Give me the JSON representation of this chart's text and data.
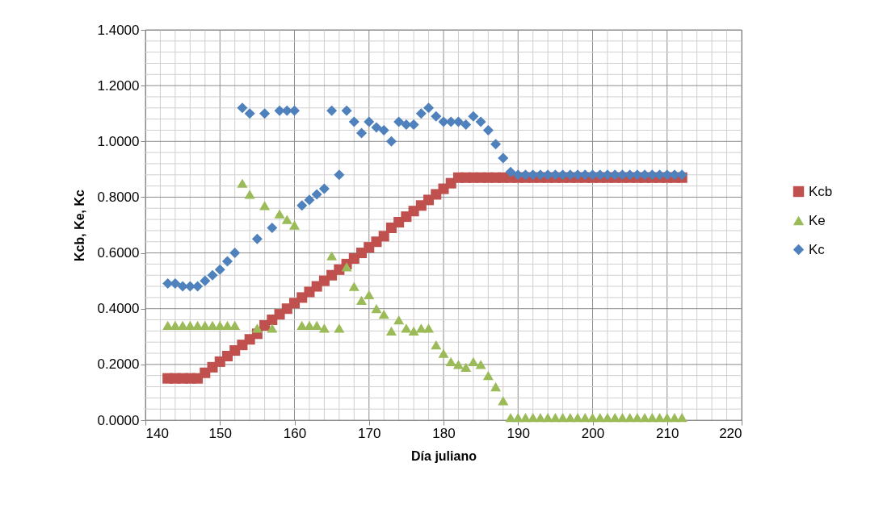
{
  "chart_data": {
    "type": "scatter",
    "xlabel": "Día juliano",
    "ylabel": "Kcb, Ke, Kc",
    "x": [
      143,
      144,
      145,
      146,
      147,
      148,
      149,
      150,
      151,
      152,
      153,
      154,
      155,
      156,
      157,
      158,
      159,
      160,
      161,
      162,
      163,
      164,
      165,
      166,
      167,
      168,
      169,
      170,
      171,
      172,
      173,
      174,
      175,
      176,
      177,
      178,
      179,
      180,
      181,
      182,
      183,
      184,
      185,
      186,
      187,
      188,
      189,
      190,
      191,
      192,
      193,
      194,
      195,
      196,
      197,
      198,
      199,
      200,
      201,
      202,
      203,
      204,
      205,
      206,
      207,
      208,
      209,
      210,
      211,
      212
    ],
    "series": [
      {
        "name": "Kcb",
        "marker": "square",
        "color": "#c0504d",
        "values": [
          0.15,
          0.15,
          0.15,
          0.15,
          0.15,
          0.17,
          0.19,
          0.21,
          0.23,
          0.25,
          0.27,
          0.29,
          0.31,
          0.34,
          0.36,
          0.38,
          0.4,
          0.42,
          0.44,
          0.46,
          0.48,
          0.5,
          0.52,
          0.54,
          0.56,
          0.58,
          0.6,
          0.62,
          0.64,
          0.66,
          0.69,
          0.71,
          0.73,
          0.75,
          0.77,
          0.79,
          0.81,
          0.83,
          0.85,
          0.87,
          0.87,
          0.87,
          0.87,
          0.87,
          0.87,
          0.87,
          0.87,
          0.87,
          0.87,
          0.87,
          0.87,
          0.87,
          0.87,
          0.87,
          0.87,
          0.87,
          0.87,
          0.87,
          0.87,
          0.87,
          0.87,
          0.87,
          0.87,
          0.87,
          0.87,
          0.87,
          0.87,
          0.87,
          0.87,
          0.87
        ]
      },
      {
        "name": "Ke",
        "marker": "triangle",
        "color": "#9bbb59",
        "values": [
          0.34,
          0.34,
          0.34,
          0.34,
          0.34,
          0.34,
          0.34,
          0.34,
          0.34,
          0.34,
          0.85,
          0.81,
          0.33,
          0.77,
          0.33,
          0.74,
          0.72,
          0.7,
          0.34,
          0.34,
          0.34,
          0.33,
          0.59,
          0.33,
          0.55,
          0.48,
          0.43,
          0.45,
          0.4,
          0.38,
          0.32,
          0.36,
          0.33,
          0.32,
          0.33,
          0.33,
          0.27,
          0.24,
          0.21,
          0.2,
          0.19,
          0.21,
          0.2,
          0.16,
          0.12,
          0.07,
          0.01,
          0.01,
          0.01,
          0.01,
          0.01,
          0.01,
          0.01,
          0.01,
          0.01,
          0.01,
          0.01,
          0.01,
          0.01,
          0.01,
          0.01,
          0.01,
          0.01,
          0.01,
          0.01,
          0.01,
          0.01,
          0.01,
          0.01,
          0.01
        ]
      },
      {
        "name": "Kc",
        "marker": "diamond",
        "color": "#4f81bd",
        "values": [
          0.49,
          0.49,
          0.48,
          0.48,
          0.48,
          0.5,
          0.52,
          0.54,
          0.57,
          0.6,
          1.12,
          1.1,
          0.65,
          1.1,
          0.69,
          1.11,
          1.11,
          1.11,
          0.77,
          0.79,
          0.81,
          0.83,
          1.11,
          0.88,
          1.11,
          1.07,
          1.03,
          1.07,
          1.05,
          1.04,
          1.0,
          1.07,
          1.06,
          1.06,
          1.1,
          1.12,
          1.09,
          1.07,
          1.07,
          1.07,
          1.06,
          1.09,
          1.07,
          1.04,
          0.99,
          0.94,
          0.89,
          0.88,
          0.88,
          0.88,
          0.88,
          0.88,
          0.88,
          0.88,
          0.88,
          0.88,
          0.88,
          0.88,
          0.88,
          0.88,
          0.88,
          0.88,
          0.88,
          0.88,
          0.88,
          0.88,
          0.88,
          0.88,
          0.88,
          0.88
        ]
      }
    ],
    "xlim": [
      140,
      220
    ],
    "xticks": [
      140,
      {
        "value": 142,
        "label": null
      },
      {
        "value": 144,
        "label": null
      },
      {
        "value": 146,
        "label": null
      },
      {
        "value": 148,
        "label": null
      },
      150,
      {
        "value": 152,
        "label": null
      },
      {
        "value": 154,
        "label": null
      },
      {
        "value": 156,
        "label": null
      },
      {
        "value": 158,
        "label": null
      },
      160,
      {
        "value": 162,
        "label": null
      },
      {
        "value": 164,
        "label": null
      },
      {
        "value": 166,
        "label": null
      },
      {
        "value": 168,
        "label": null
      },
      170,
      {
        "value": 172,
        "label": null
      },
      {
        "value": 174,
        "label": null
      },
      {
        "value": 176,
        "label": null
      },
      {
        "value": 178,
        "label": null
      },
      180,
      {
        "value": 182,
        "label": null
      },
      {
        "value": 184,
        "label": null
      },
      {
        "value": 186,
        "label": null
      },
      {
        "value": 188,
        "label": null
      },
      190,
      {
        "value": 192,
        "label": null
      },
      {
        "value": 194,
        "label": null
      },
      {
        "value": 196,
        "label": null
      },
      {
        "value": 198,
        "label": null
      },
      200,
      {
        "value": 202,
        "label": null
      },
      {
        "value": 204,
        "label": null
      },
      {
        "value": 206,
        "label": null
      },
      {
        "value": 208,
        "label": null
      },
      210,
      {
        "value": 212,
        "label": null
      },
      {
        "value": 214,
        "label": null
      },
      {
        "value": 216,
        "label": null
      },
      {
        "value": 218,
        "label": null
      },
      220
    ],
    "ylim": [
      0,
      1.4
    ],
    "yticks": [
      {
        "value": 0,
        "label": "0.0000"
      },
      {
        "value": 0.04,
        "label": null
      },
      {
        "value": 0.08,
        "label": null
      },
      {
        "value": 0.12,
        "label": null
      },
      {
        "value": 0.16,
        "label": null
      },
      {
        "value": 0.2,
        "label": "0.2000"
      },
      {
        "value": 0.24,
        "label": null
      },
      {
        "value": 0.28,
        "label": null
      },
      {
        "value": 0.32,
        "label": null
      },
      {
        "value": 0.36,
        "label": null
      },
      {
        "value": 0.4,
        "label": "0.4000"
      },
      {
        "value": 0.44,
        "label": null
      },
      {
        "value": 0.48,
        "label": null
      },
      {
        "value": 0.52,
        "label": null
      },
      {
        "value": 0.56,
        "label": null
      },
      {
        "value": 0.6,
        "label": "0.6000"
      },
      {
        "value": 0.64,
        "label": null
      },
      {
        "value": 0.68,
        "label": null
      },
      {
        "value": 0.72,
        "label": null
      },
      {
        "value": 0.76,
        "label": null
      },
      {
        "value": 0.8,
        "label": "0.8000"
      },
      {
        "value": 0.84,
        "label": null
      },
      {
        "value": 0.88,
        "label": null
      },
      {
        "value": 0.92,
        "label": null
      },
      {
        "value": 0.96,
        "label": null
      },
      {
        "value": 1.0,
        "label": "1.0000"
      },
      {
        "value": 1.04,
        "label": null
      },
      {
        "value": 1.08,
        "label": null
      },
      {
        "value": 1.12,
        "label": null
      },
      {
        "value": 1.16,
        "label": null
      },
      {
        "value": 1.2,
        "label": "1.2000"
      },
      {
        "value": 1.24,
        "label": null
      },
      {
        "value": 1.28,
        "label": null
      },
      {
        "value": 1.32,
        "label": null
      },
      {
        "value": 1.36,
        "label": null
      },
      {
        "value": 1.4,
        "label": "1.4000"
      }
    ],
    "grid": true,
    "legend": "right"
  }
}
